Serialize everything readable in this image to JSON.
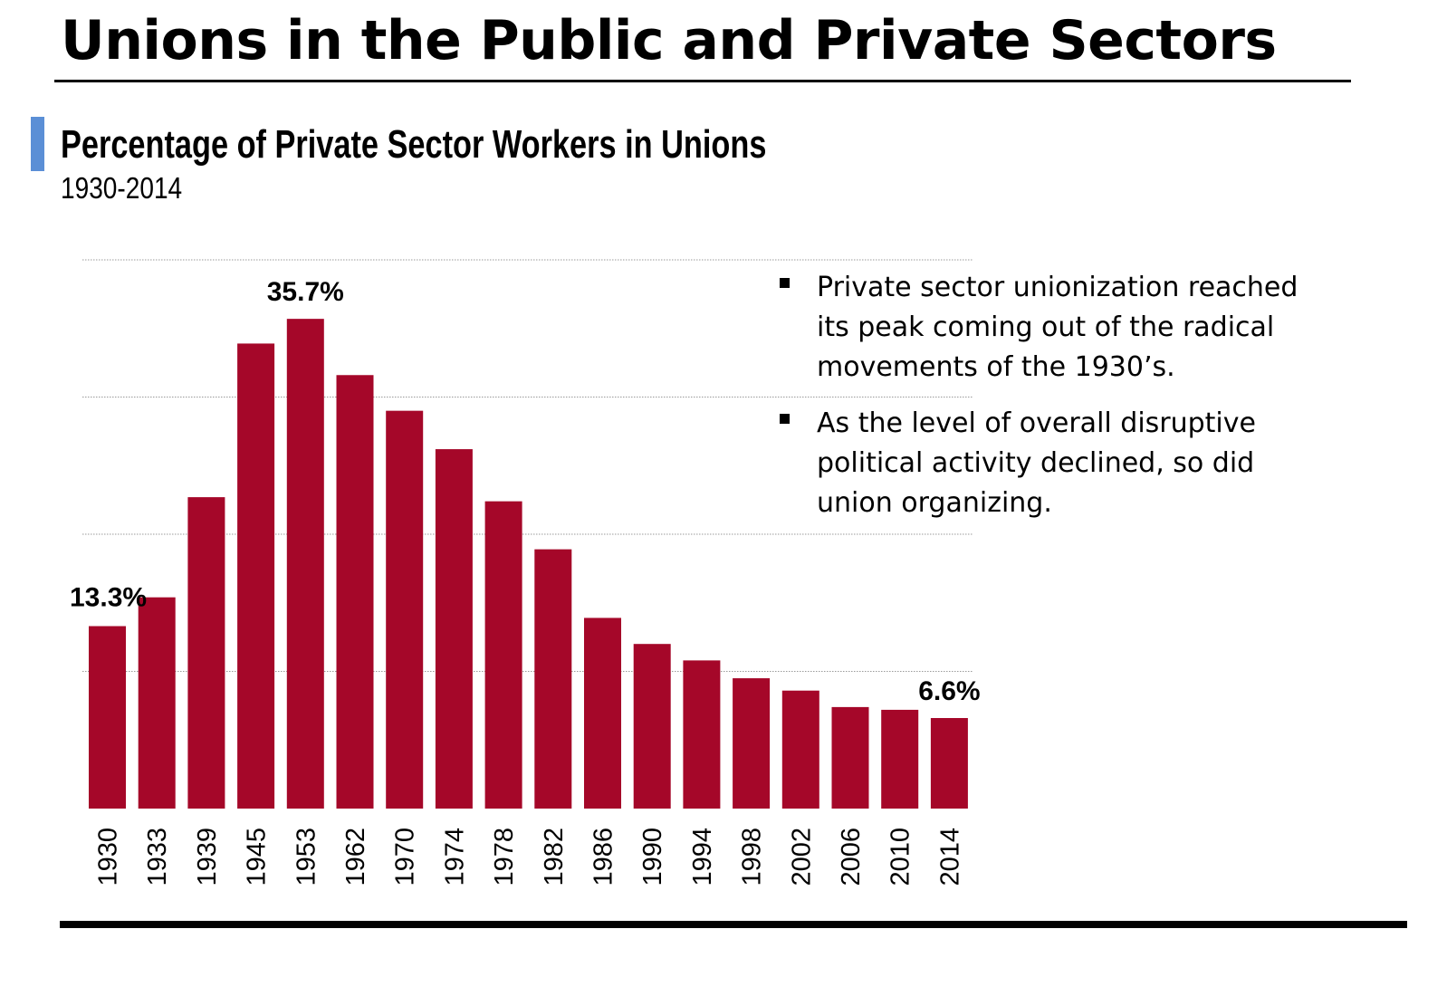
{
  "header": {
    "title": "Unions in the Public and Private Sectors"
  },
  "chart_data": {
    "type": "bar",
    "title": "Percentage of Private Sector Workers in Unions",
    "subtitle": "1930-2014",
    "xlabel": "",
    "ylabel": "",
    "categories": [
      "1930",
      "1933",
      "1939",
      "1945",
      "1953",
      "1962",
      "1970",
      "1974",
      "1978",
      "1982",
      "1986",
      "1990",
      "1994",
      "1998",
      "2002",
      "2006",
      "2010",
      "2014"
    ],
    "values": [
      13.3,
      15.4,
      22.7,
      33.9,
      35.7,
      31.6,
      29.0,
      26.2,
      22.4,
      18.9,
      13.9,
      12.0,
      10.8,
      9.5,
      8.6,
      7.4,
      7.2,
      6.6
    ],
    "ylim": [
      0,
      40
    ],
    "grid": true,
    "bar_color": "#a50729",
    "data_labels": [
      {
        "index": 0,
        "text": "13.3%"
      },
      {
        "index": 4,
        "text": "35.7%"
      },
      {
        "index": 17,
        "text": "6.6%"
      }
    ]
  },
  "notes": {
    "bullets": [
      "Private sector unionization reached its peak coming out of the radical movements of the 1930’s.",
      "As the level of overall disruptive political activity declined, so did union organizing."
    ]
  }
}
